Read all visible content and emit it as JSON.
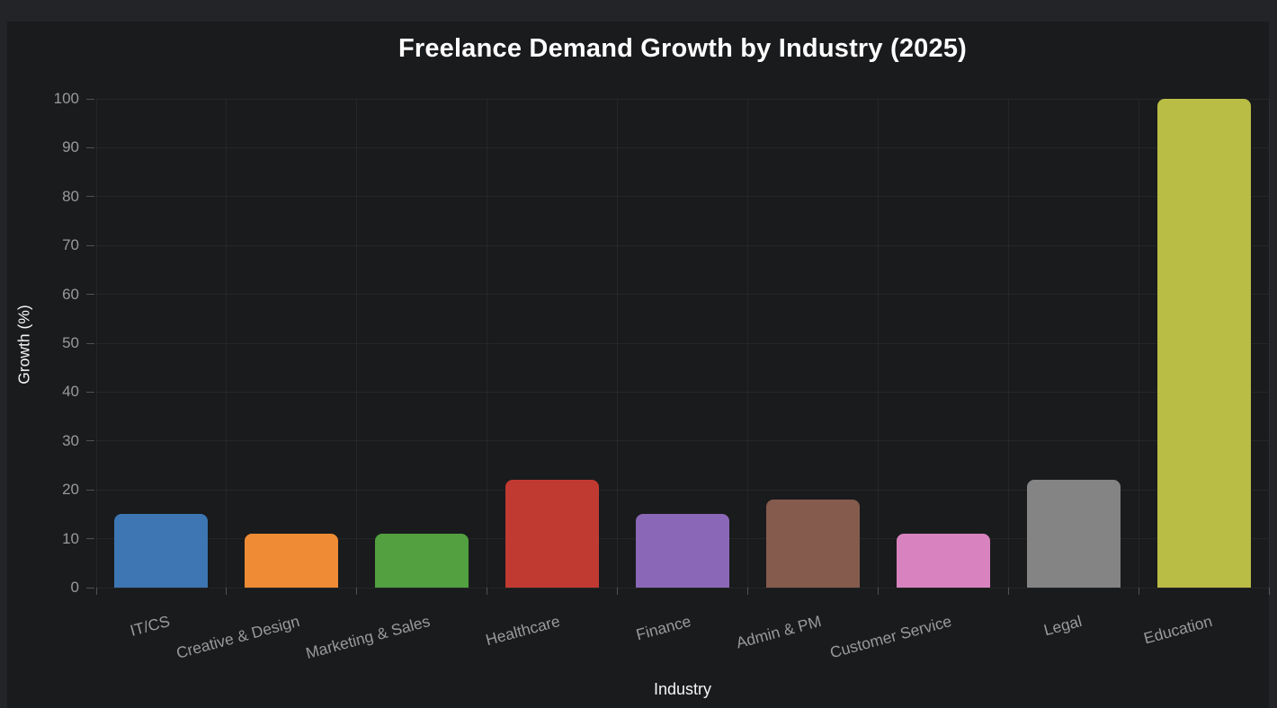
{
  "chart_data": {
    "type": "bar",
    "title": "Freelance Demand Growth by Industry (2025)",
    "xlabel": "Industry",
    "ylabel": "Growth (%)",
    "categories": [
      "IT/CS",
      "Creative & Design",
      "Marketing & Sales",
      "Healthcare",
      "Finance",
      "Admin & PM",
      "Customer Service",
      "Legal",
      "Education"
    ],
    "values": [
      15,
      11,
      11,
      22,
      15,
      18,
      11,
      22,
      100
    ],
    "bar_colors": [
      "#3d76b2",
      "#ee8b34",
      "#52a03f",
      "#c13a31",
      "#8b68b7",
      "#855b4d",
      "#d883bf",
      "#848484",
      "#babd45"
    ],
    "ylim": [
      0,
      100
    ],
    "yticks": [
      0,
      10,
      20,
      30,
      40,
      50,
      60,
      70,
      80,
      90,
      100
    ],
    "grid": true,
    "legend_position": "none",
    "xtick_rotation_deg": -15
  },
  "colors": {
    "page_background": "#232428",
    "panel_background": "#1a1b1d",
    "grid_color": "#2a2b2e",
    "tick_label_color": "#9a9a9a",
    "axis_title_color": "#f5f5f5",
    "title_color": "#ffffff"
  }
}
